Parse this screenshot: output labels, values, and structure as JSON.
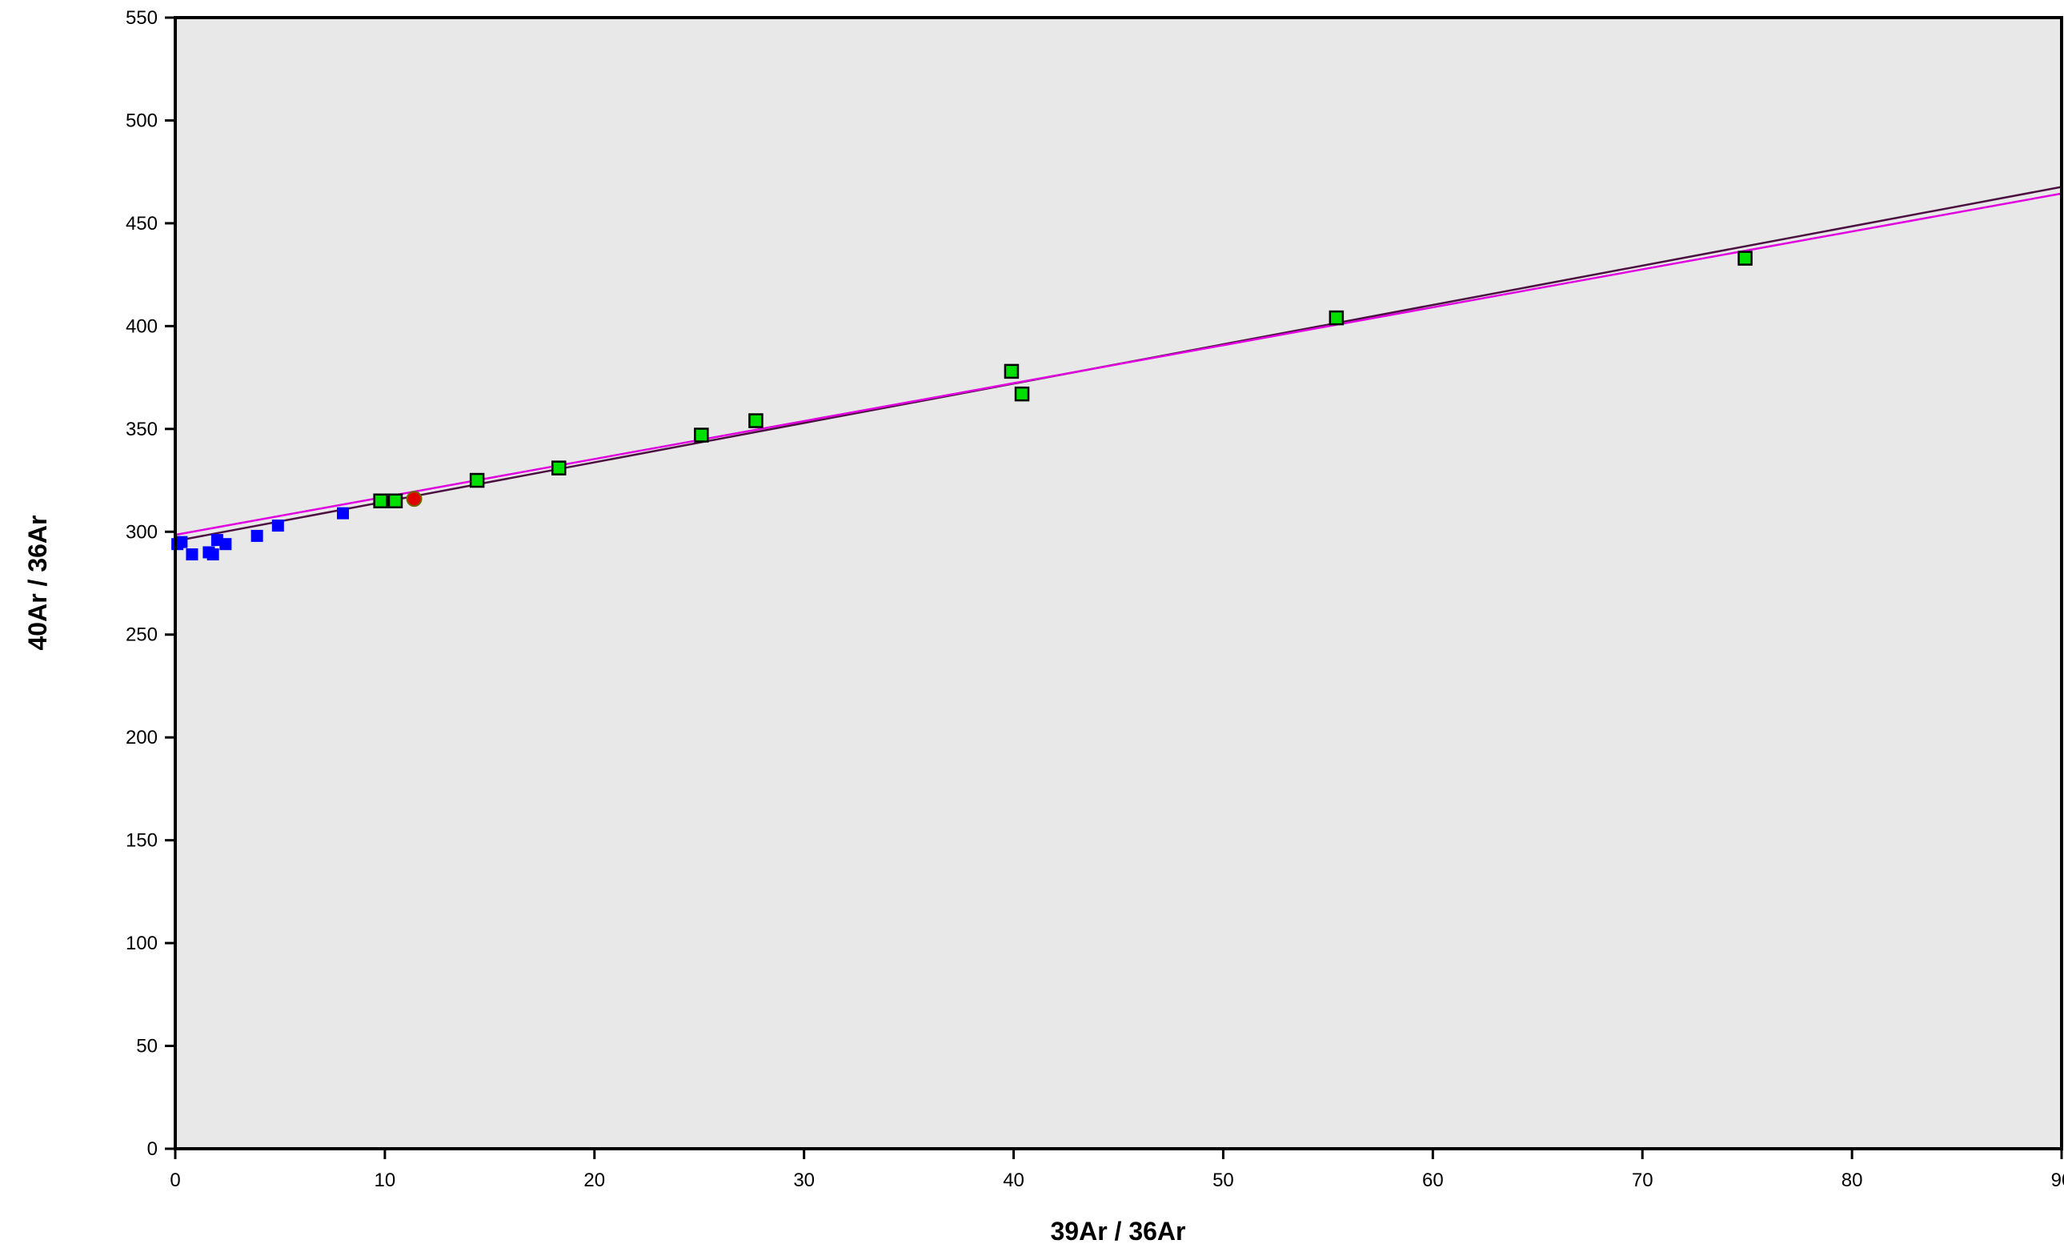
{
  "chart_data": {
    "type": "scatter",
    "title": "",
    "xlabel": "39Ar / 36Ar",
    "ylabel": "40Ar / 36Ar",
    "xlim": [
      0,
      90
    ],
    "ylim": [
      0,
      550
    ],
    "x_ticks": [
      0,
      10,
      20,
      30,
      40,
      50,
      60,
      70,
      80,
      90
    ],
    "y_ticks": [
      0,
      50,
      100,
      150,
      200,
      250,
      300,
      350,
      400,
      450,
      500,
      550
    ],
    "grid": false,
    "legend": "none",
    "plot_background": "#e8e8e8",
    "series": [
      {
        "marker": "square-filled",
        "color": "#0000ff",
        "points": [
          [
            0.1,
            294
          ],
          [
            0.3,
            295
          ],
          [
            0.8,
            289
          ],
          [
            1.6,
            290
          ],
          [
            1.8,
            289
          ],
          [
            2.0,
            296
          ],
          [
            2.4,
            294
          ],
          [
            3.9,
            298
          ],
          [
            4.9,
            303
          ],
          [
            8.0,
            309
          ]
        ]
      },
      {
        "marker": "square-outlined",
        "color": "#00e000",
        "points": [
          [
            9.8,
            315
          ],
          [
            10.5,
            315
          ],
          [
            14.4,
            325
          ],
          [
            18.3,
            331
          ],
          [
            25.1,
            347
          ],
          [
            27.7,
            354
          ],
          [
            39.9,
            378
          ],
          [
            40.4,
            367
          ],
          [
            55.4,
            404
          ],
          [
            74.9,
            433
          ]
        ]
      },
      {
        "marker": "circle",
        "color": "#e00000",
        "points": [
          [
            11.4,
            316
          ]
        ]
      }
    ],
    "lines": [
      {
        "color": "#4b1040",
        "intercept": 295.5,
        "slope": 1.913
      },
      {
        "color": "#e000e0",
        "intercept": 298.5,
        "slope": 1.844
      }
    ]
  }
}
